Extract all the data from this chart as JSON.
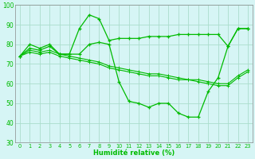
{
  "xlabel": "Humidité relative (%)",
  "x_values": [
    0,
    1,
    2,
    3,
    4,
    5,
    6,
    7,
    8,
    9,
    10,
    11,
    12,
    13,
    14,
    15,
    16,
    17,
    18,
    19,
    20,
    21,
    22,
    23
  ],
  "line1": [
    74,
    80,
    78,
    80,
    75,
    75,
    88,
    95,
    93,
    82,
    83,
    83,
    83,
    84,
    84,
    84,
    85,
    85,
    85,
    85,
    85,
    79,
    88,
    88
  ],
  "line2": [
    74,
    78,
    77,
    79,
    75,
    75,
    75,
    80,
    81,
    80,
    61,
    51,
    50,
    48,
    50,
    50,
    45,
    43,
    43,
    56,
    63,
    79,
    88,
    88
  ],
  "line3": [
    74,
    76,
    75,
    76,
    74,
    73,
    72,
    71,
    70,
    68,
    67,
    66,
    65,
    64,
    64,
    63,
    62,
    62,
    61,
    60,
    59,
    59,
    63,
    66
  ],
  "line4": [
    74,
    77,
    76,
    77,
    75,
    74,
    73,
    72,
    71,
    69,
    68,
    67,
    66,
    65,
    65,
    64,
    63,
    62,
    62,
    61,
    60,
    60,
    64,
    67
  ],
  "line_color": "#00bb00",
  "bg_color": "#d6f5f5",
  "grid_color": "#aaddcc",
  "ylim": [
    30,
    100
  ],
  "xlim": [
    -0.5,
    23.5
  ],
  "yticks": [
    30,
    40,
    50,
    60,
    70,
    80,
    90,
    100
  ]
}
